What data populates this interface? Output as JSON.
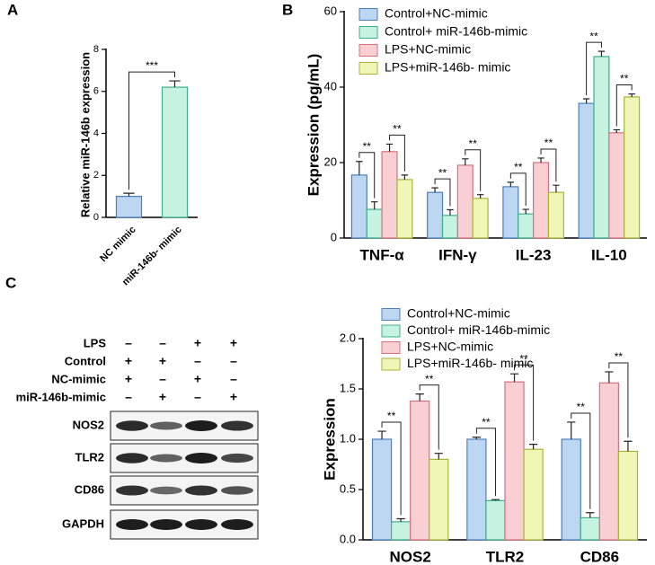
{
  "chart_data": [
    {
      "type": "bar",
      "label": "A",
      "ylabel": "Relative miR-146b expression",
      "categories": [
        "NC mimic",
        "miR-146b- mimic"
      ],
      "values": [
        1.0,
        6.2
      ],
      "errors": [
        0.15,
        0.3
      ],
      "colors": [
        "#bdd7f2",
        "#c6f2e1"
      ],
      "edgecolors": [
        "#4a7fc1",
        "#3fae8a"
      ],
      "ylim": [
        0,
        8
      ],
      "yticks": [
        0,
        2,
        4,
        6,
        8
      ],
      "comparisons": [
        {
          "categories": [
            0,
            1
          ],
          "label": "***"
        }
      ]
    },
    {
      "type": "grouped_bar",
      "label": "B",
      "ylabel": "Expression (pg/mL)",
      "categories": [
        "TNF-α",
        "IFN-γ",
        "IL-23",
        "IL-10"
      ],
      "series": [
        {
          "name": "Control+NC-mimic",
          "color": "#bdd7f2",
          "edgecolor": "#4a7fc1",
          "values": [
            16.7,
            12.1,
            13.6,
            35.7
          ],
          "errors": [
            3.6,
            1.2,
            1.2,
            1.2
          ]
        },
        {
          "name": "Control+ miR-146b-mimic",
          "color": "#c6f2e1",
          "edgecolor": "#3fae8a",
          "values": [
            7.6,
            6.0,
            6.4,
            48.1
          ],
          "errors": [
            2.0,
            1.5,
            1.2,
            1.4
          ]
        },
        {
          "name": "LPS+NC-mimic",
          "color": "#f9cfd4",
          "edgecolor": "#d9707d",
          "values": [
            22.9,
            19.3,
            20.0,
            27.9
          ],
          "errors": [
            2.0,
            1.7,
            1.2,
            0.8
          ]
        },
        {
          "name": "LPS+miR-146b- mimic",
          "color": "#f0f7b6",
          "edgecolor": "#a9b43a",
          "values": [
            15.5,
            10.5,
            12.1,
            37.4
          ],
          "errors": [
            1.2,
            1.0,
            1.9,
            0.8
          ]
        }
      ],
      "ylim": [
        0,
        60
      ],
      "yticks": [
        0,
        20,
        40,
        60
      ],
      "legend": "upper left",
      "comparisons": [
        {
          "series": [
            0,
            1
          ],
          "labels": [
            "**",
            "**",
            "**",
            "**"
          ]
        },
        {
          "series": [
            2,
            3
          ],
          "labels": [
            "**",
            "**",
            "**",
            "**"
          ]
        }
      ]
    },
    {
      "type": "grouped_bar",
      "ylabel": "Expression",
      "categories": [
        "NOS2",
        "TLR2",
        "CD86"
      ],
      "series": [
        {
          "name": "Control+NC-mimic",
          "color": "#bdd7f2",
          "edgecolor": "#4a7fc1",
          "values": [
            1.0,
            1.0,
            1.0
          ],
          "errors": [
            0.08,
            0.02,
            0.17
          ]
        },
        {
          "name": "Control+ miR-146b-mimic",
          "color": "#c6f2e1",
          "edgecolor": "#3fae8a",
          "values": [
            0.18,
            0.39,
            0.22
          ],
          "errors": [
            0.03,
            0.01,
            0.05
          ]
        },
        {
          "name": "LPS+NC-mimic",
          "color": "#f9cfd4",
          "edgecolor": "#d9707d",
          "values": [
            1.38,
            1.57,
            1.56
          ],
          "errors": [
            0.07,
            0.08,
            0.11
          ]
        },
        {
          "name": "LPS+miR-146b- mimic",
          "color": "#f0f7b6",
          "edgecolor": "#a9b43a",
          "values": [
            0.8,
            0.9,
            0.88
          ],
          "errors": [
            0.06,
            0.05,
            0.1
          ]
        }
      ],
      "ylim": [
        0,
        2
      ],
      "yticks": [
        {
          "value": 0,
          "label": "0.0"
        },
        0.5,
        {
          "value": 1,
          "label": "1.0"
        },
        1.5,
        {
          "value": 2,
          "label": "2.0"
        }
      ],
      "legend": "upper left",
      "comparisons": [
        {
          "series": [
            0,
            1
          ],
          "labels": [
            "**",
            "**",
            "**"
          ]
        },
        {
          "series": [
            2,
            3
          ],
          "labels": [
            "**",
            "**",
            "**"
          ]
        }
      ]
    }
  ],
  "blot": {
    "label": "C",
    "conditions": [
      {
        "name": "LPS",
        "signs": [
          "–",
          "–",
          "+",
          "+"
        ]
      },
      {
        "name": "Control",
        "signs": [
          "+",
          "+",
          "–",
          "–"
        ]
      },
      {
        "name": "NC-mimic",
        "signs": [
          "+",
          "–",
          "+",
          "–"
        ]
      },
      {
        "name": "miR-146b-mimic",
        "signs": [
          "–",
          "+",
          "–",
          "+"
        ]
      }
    ],
    "proteins": [
      "NOS2",
      "TLR2",
      "CD86",
      "GAPDH"
    ]
  }
}
